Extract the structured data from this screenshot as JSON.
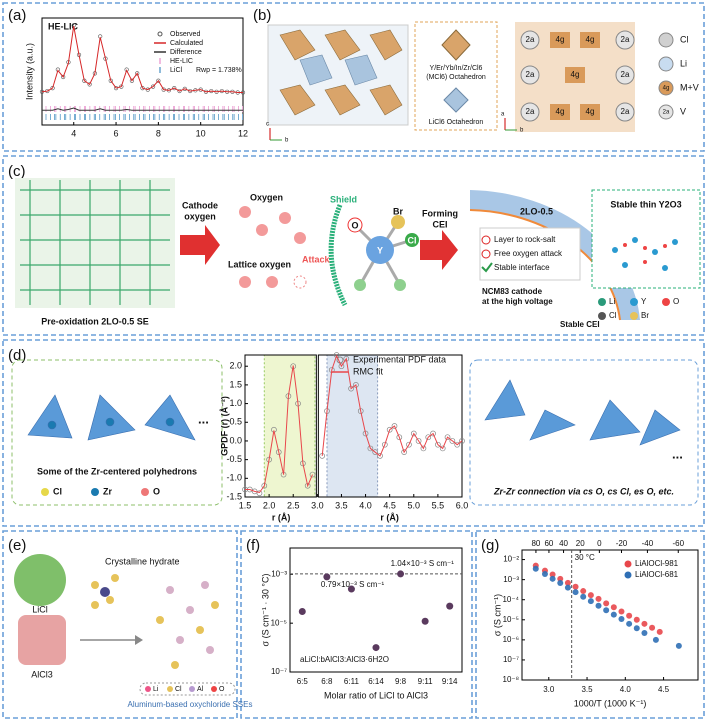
{
  "panels": {
    "a": {
      "label": "(a)",
      "plot": {
        "type": "line",
        "title": "HE-LIC",
        "ylabel": "Intensity (a.u.)",
        "xlim": [
          2.5,
          12
        ],
        "xticks": [
          4,
          6,
          8,
          10,
          12
        ],
        "ylim": [
          -0.4,
          1.05
        ],
        "x": [
          2.5,
          2.75,
          3.0,
          3.25,
          3.5,
          3.75,
          4.0,
          4.25,
          4.5,
          4.75,
          5.0,
          5.25,
          5.5,
          5.75,
          6.0,
          6.25,
          6.5,
          6.75,
          7.0,
          7.25,
          7.5,
          7.75,
          8.0,
          8.25,
          8.5,
          8.75,
          9.0,
          9.25,
          9.5,
          9.75,
          10.0,
          10.25,
          10.5,
          10.75,
          11.0,
          11.25,
          11.5,
          11.75,
          12.0
        ],
        "series": [
          {
            "name": "Observed",
            "color": "#555555",
            "values": [
              0.05,
              0.06,
              0.1,
              0.35,
              0.25,
              0.45,
              0.95,
              0.55,
              0.2,
              0.15,
              0.3,
              0.8,
              0.5,
              0.2,
              0.1,
              0.12,
              0.35,
              0.2,
              0.3,
              0.1,
              0.08,
              0.12,
              0.2,
              0.08,
              0.07,
              0.1,
              0.06,
              0.09,
              0.06,
              0.07,
              0.08,
              0.05,
              0.06,
              0.05,
              0.06,
              0.05,
              0.05,
              0.04,
              0.04
            ]
          },
          {
            "name": "Calculated",
            "color": "#d62728",
            "values": [
              0.05,
              0.06,
              0.1,
              0.34,
              0.25,
              0.44,
              0.94,
              0.55,
              0.2,
              0.15,
              0.3,
              0.79,
              0.5,
              0.2,
              0.1,
              0.12,
              0.34,
              0.2,
              0.3,
              0.1,
              0.08,
              0.12,
              0.2,
              0.08,
              0.07,
              0.1,
              0.06,
              0.09,
              0.06,
              0.07,
              0.08,
              0.05,
              0.06,
              0.05,
              0.06,
              0.05,
              0.05,
              0.04,
              0.04
            ]
          },
          {
            "name": "Difference",
            "color": "#333333",
            "values": [
              -0.2,
              -0.2,
              -0.2,
              -0.18,
              -0.2,
              -0.19,
              -0.17,
              -0.2,
              -0.2,
              -0.2,
              -0.2,
              -0.18,
              -0.2,
              -0.2,
              -0.2,
              -0.2,
              -0.19,
              -0.2,
              -0.2,
              -0.2,
              -0.2,
              -0.2,
              -0.2,
              -0.2,
              -0.2,
              -0.2,
              -0.2,
              -0.2,
              -0.2,
              -0.2,
              -0.2,
              -0.2,
              -0.2,
              -0.2,
              -0.2,
              -0.2,
              -0.2,
              -0.2,
              -0.2
            ]
          }
        ],
        "bragg": [
          {
            "name": "HE-LIC",
            "color": "#e377c2"
          },
          {
            "name": "LiCl",
            "color": "#1f77b4"
          }
        ],
        "rwp": "Rwp = 1.738%"
      }
    },
    "b": {
      "label": "(b)",
      "octahedra": [
        "Y/Er/Yb/In/Zr/Cl6",
        "(MCl6) Octahedron",
        "LiCl6 Octahedron"
      ],
      "sites": [
        "2a",
        "4g"
      ],
      "legend": [
        "Cl",
        "Li",
        "M+V",
        "V"
      ],
      "axes": [
        "c",
        "b",
        "a"
      ]
    },
    "c": {
      "label": "(c)",
      "pre": "Pre-oxidation 2LO-0.5 SE",
      "cathode": [
        "Cathode",
        "oxygen"
      ],
      "oxygen": "Oxygen",
      "lattice": "Lattice oxygen",
      "attack": "Attack",
      "shield": "Shield",
      "atoms": [
        "O",
        "Br",
        "Y",
        "Cl"
      ],
      "forming": [
        "Forming",
        "CEI"
      ],
      "layer": "2LO-0.5",
      "items": [
        "Layer to rock-salt",
        "Free oxygen attack",
        "Stable interface"
      ],
      "ncm": [
        "NCM83 cathode",
        "at the high voltage"
      ],
      "stable_cei": "Stable CEI",
      "thin": "Stable thin Y2O3",
      "legend": [
        "Li",
        "Y",
        "O",
        "Cl",
        "Br"
      ]
    },
    "d": {
      "label": "(d)",
      "left_caption": "Some of the Zr-centered polyhedrons",
      "left_legend": [
        "Cl",
        "Zr",
        "O"
      ],
      "right_caption": "Zr-Zr connection via cs O, cs Cl, es O, etc.",
      "ellipsis": "...",
      "plot": {
        "type": "line",
        "xlabel": "r (Å)",
        "ylabel": "GPDF (r) (Å⁻²)",
        "xlim": [
          1.5,
          6.0
        ],
        "xticks": [
          1.5,
          {
            "value": 2,
            "label": "2.0"
          },
          2.5,
          {
            "value": 3,
            "label": "3.0"
          },
          3.5,
          {
            "value": 4,
            "label": "4.0"
          },
          4.5,
          {
            "value": 5,
            "label": "5.0"
          },
          5.5,
          {
            "value": 6,
            "label": "6.0"
          }
        ],
        "ylim": [
          -1.5,
          2.3
        ],
        "yticks": [
          -1.5,
          {
            "value": -1,
            "label": "-1.0"
          },
          -0.5,
          {
            "value": 0,
            "label": "0.0"
          },
          0.5,
          {
            "value": 1,
            "label": "1.0"
          },
          1.5,
          {
            "value": 2,
            "label": "2.0"
          }
        ],
        "x": [
          1.5,
          1.6,
          1.7,
          1.8,
          1.9,
          2.0,
          2.1,
          2.2,
          2.3,
          2.4,
          2.5,
          2.6,
          2.7,
          2.8,
          2.9,
          3.0,
          3.1,
          3.2,
          3.3,
          3.4,
          3.5,
          3.6,
          3.7,
          3.8,
          3.9,
          4.0,
          4.1,
          4.2,
          4.3,
          4.4,
          4.5,
          4.6,
          4.7,
          4.8,
          4.9,
          5.0,
          5.1,
          5.2,
          5.3,
          5.4,
          5.5,
          5.6,
          5.7,
          5.8,
          5.9,
          6.0
        ],
        "series": [
          {
            "name": "Experimental PDF data",
            "color": "#888888",
            "values": [
              -1.3,
              -1.3,
              -1.35,
              -1.4,
              -1.2,
              -0.5,
              0.3,
              -0.3,
              -0.9,
              1.2,
              2.0,
              1.0,
              -0.6,
              -1.2,
              -0.9,
              null,
              -0.4,
              0.8,
              1.9,
              2.3,
              2.0,
              2.2,
              1.4,
              1.5,
              0.8,
              0.2,
              -0.2,
              -0.3,
              -0.4,
              -0.1,
              0.3,
              0.4,
              0.1,
              -0.3,
              -0.1,
              0.2,
              0.0,
              -0.2,
              0.1,
              0.2,
              -0.1,
              -0.2,
              0.1,
              0.0,
              -0.1,
              0.0
            ]
          },
          {
            "name": "RMC fit",
            "color": "#e8474b",
            "values": [
              -1.3,
              -1.3,
              -1.35,
              -1.38,
              -1.2,
              -0.5,
              0.28,
              -0.3,
              -0.9,
              1.2,
              2.02,
              1.0,
              -0.6,
              -1.2,
              -0.9,
              null,
              -0.4,
              0.8,
              1.9,
              2.28,
              2.0,
              2.2,
              1.4,
              1.5,
              0.8,
              0.2,
              -0.2,
              -0.3,
              -0.4,
              -0.1,
              0.3,
              0.4,
              0.1,
              -0.3,
              -0.1,
              0.2,
              0.0,
              -0.2,
              0.1,
              0.2,
              -0.1,
              -0.2,
              0.1,
              0.0,
              -0.1,
              0.0
            ]
          }
        ]
      }
    },
    "e": {
      "label": "(e)",
      "licl": "LiCl",
      "hydrate": "Crystalline hydrate",
      "alcl": "AlCl3",
      "caption": "Aluminum-based oxychloride SSEs",
      "legend": [
        "Li",
        "Cl",
        "Al",
        "O"
      ]
    },
    "f": {
      "label": "(f)",
      "plot": {
        "type": "scatter",
        "log": true,
        "color": "#5a3a5e",
        "categories": [
          "6:5",
          "6:8",
          "6:11",
          "6:14",
          "9:8",
          "9:11",
          "9:14"
        ],
        "values": [
          3e-05,
          0.00079,
          0.00025,
          1e-06,
          0.00104,
          1.2e-05,
          5e-05
        ],
        "value_labels": {
          "1": "0.79×10⁻³ S cm⁻¹",
          "4": "1.04×10⁻³ S cm⁻¹"
        },
        "ylim": [
          1e-07,
          0.012
        ],
        "yticks": [
          {
            "value": 0.001,
            "label": "10⁻³"
          },
          {
            "value": 1e-05,
            "label": "10⁻⁵"
          },
          {
            "value": 1e-07,
            "label": "10⁻⁷"
          }
        ],
        "xlabel": "Molar ratio of LiCl to AlCl3",
        "ylabel": "σ (S cm⁻¹ · 30 °C)",
        "note": "aLiCl:bAlCl3:AlCl3·6H2O"
      }
    },
    "g": {
      "label": "(g)",
      "plot": {
        "type": "scatter",
        "log": true,
        "xlim": [
          2.65,
          4.95
        ],
        "xticks": [
          {
            "value": 3,
            "label": "3.0"
          },
          3.5,
          {
            "value": 4,
            "label": "4.0"
          },
          4.5
        ],
        "x2ticks": [
          {
            "value": 2.832,
            "label": "80"
          },
          {
            "value": 3.002,
            "label": "60"
          },
          {
            "value": 3.193,
            "label": "40"
          },
          {
            "value": 3.411,
            "label": "20"
          },
          {
            "value": 3.661,
            "label": "0"
          },
          {
            "value": 3.95,
            "label": "-20"
          },
          {
            "value": 4.289,
            "label": "-40"
          },
          {
            "value": 4.692,
            "label": "-60"
          }
        ],
        "ylim": [
          1e-08,
          0.03
        ],
        "yticks": [
          {
            "value": 0.01,
            "label": "10⁻²"
          },
          {
            "value": 0.001,
            "label": "10⁻³"
          },
          {
            "value": 0.0001,
            "label": "10⁻⁴"
          },
          {
            "value": 1e-05,
            "label": "10⁻⁵"
          },
          {
            "value": 1e-06,
            "label": "10⁻⁶"
          },
          {
            "value": 1e-07,
            "label": "10⁻⁷"
          },
          {
            "value": 1e-08,
            "label": "10⁻⁸"
          }
        ],
        "ref_line": {
          "value": 3.299,
          "label": "30 °C"
        },
        "xlabel": "1000/T (1000 K⁻¹)",
        "ylabel": "σ (S cm⁻¹)",
        "series": [
          {
            "name": "LiAlOCl-981",
            "color": "#e8474b",
            "x": [
              2.83,
              2.95,
              3.05,
              3.15,
              3.25,
              3.35,
              3.45,
              3.55,
              3.65,
              3.75,
              3.85,
              3.95,
              4.05,
              4.15,
              4.25,
              4.35,
              4.45
            ],
            "values": [
              0.005,
              0.0028,
              0.0018,
              0.0011,
              0.00069,
              0.00044,
              0.00027,
              0.00017,
              0.00011,
              6.6e-05,
              4.2e-05,
              2.6e-05,
              1.6e-05,
              1e-05,
              6.3e-06,
              4e-06,
              2.5e-06
            ]
          },
          {
            "name": "LiAlOCl-681",
            "color": "#2f6fb5",
            "x": [
              2.83,
              2.95,
              3.05,
              3.15,
              3.25,
              3.35,
              3.45,
              3.55,
              3.65,
              3.75,
              3.85,
              3.95,
              4.05,
              4.15,
              4.25,
              4.4,
              4.7
            ],
            "values": [
              0.0035,
              0.0019,
              0.0011,
              0.00068,
              0.0004,
              0.00024,
              0.00014,
              8.5e-05,
              5e-05,
              3e-05,
              1.8e-05,
              1.1e-05,
              6.3e-06,
              3.8e-06,
              2.2e-06,
              1e-06,
              5e-07
            ]
          }
        ]
      }
    }
  }
}
